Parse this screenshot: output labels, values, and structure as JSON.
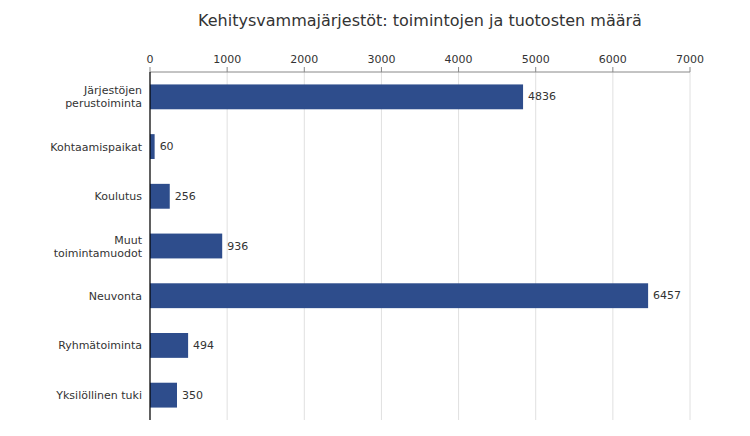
{
  "chart_data": {
    "type": "bar",
    "orientation": "horizontal",
    "title": "Kehitysvammajärjestöt: toimintojen ja tuotosten määrä",
    "categories": [
      "Järjestöjen\nperustoiminta",
      "Kohtaamispaikat",
      "Koulutus",
      "Muut\ntoimintamuodot",
      "Neuvonta",
      "Ryhmätoiminta",
      "Yksilöllinen tuki"
    ],
    "values": [
      4836,
      60,
      256,
      936,
      6457,
      494,
      350
    ],
    "color": "#2E4D8C",
    "xlim": [
      0,
      7000
    ],
    "xticks": [
      0,
      1000,
      2000,
      3000,
      4000,
      5000,
      6000,
      7000
    ],
    "grid": true,
    "data_labels": true
  }
}
